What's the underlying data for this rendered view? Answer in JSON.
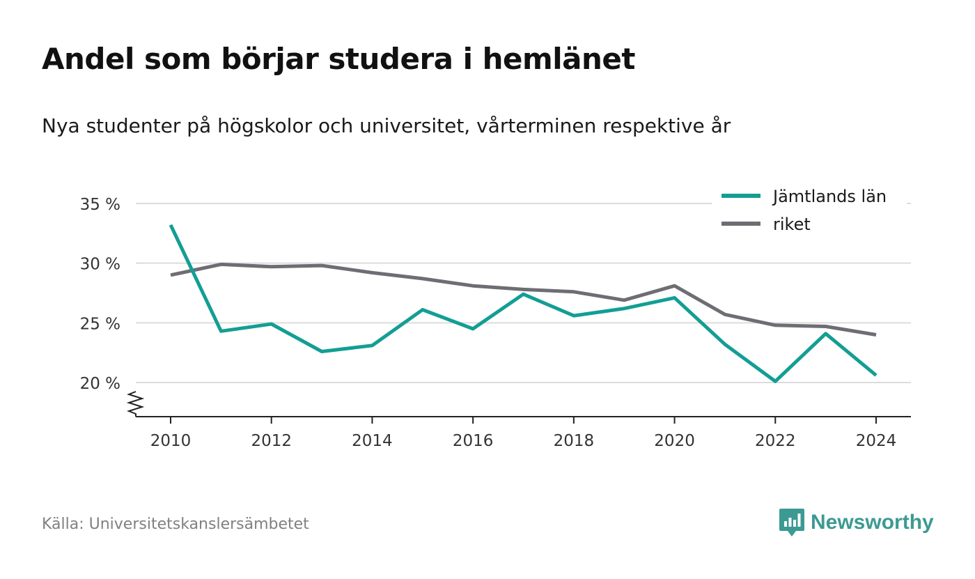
{
  "title": "Andel som börjar studera i hemlänet",
  "subtitle": "Nya studenter på högskolor och universitet, vårterminen respektive år",
  "source": "Källa: Universitetskanslersämbetet",
  "brand": {
    "name": "Newsworthy",
    "color": "#3d9a93"
  },
  "colors": {
    "series_1": "#139e94",
    "series_2": "#6e6d74",
    "grid": "#dcdcdc",
    "axis": "#222222"
  },
  "chart_data": {
    "type": "line",
    "x": [
      2010,
      2011,
      2012,
      2013,
      2014,
      2015,
      2016,
      2017,
      2018,
      2019,
      2020,
      2021,
      2022,
      2023,
      2024
    ],
    "x_ticks": [
      2010,
      2012,
      2014,
      2016,
      2018,
      2020,
      2022,
      2024
    ],
    "y_ticks": [
      20,
      25,
      30,
      35
    ],
    "y_tick_labels": [
      "20 %",
      "25 %",
      "30 %",
      "35 %"
    ],
    "ylim": [
      17.5,
      35
    ],
    "y_axis_break": true,
    "grid": true,
    "legend_position": "top-right",
    "series": [
      {
        "name": "Jämtlands län",
        "color": "#139e94",
        "values": [
          33.2,
          24.3,
          24.9,
          22.6,
          23.1,
          26.1,
          24.5,
          27.4,
          25.6,
          26.2,
          27.1,
          23.2,
          20.1,
          24.1,
          20.6
        ]
      },
      {
        "name": "riket",
        "color": "#6e6d74",
        "values": [
          29.0,
          29.9,
          29.7,
          29.8,
          29.2,
          28.7,
          28.1,
          27.8,
          27.6,
          26.9,
          28.1,
          25.7,
          24.8,
          24.7,
          24.0
        ]
      }
    ]
  }
}
